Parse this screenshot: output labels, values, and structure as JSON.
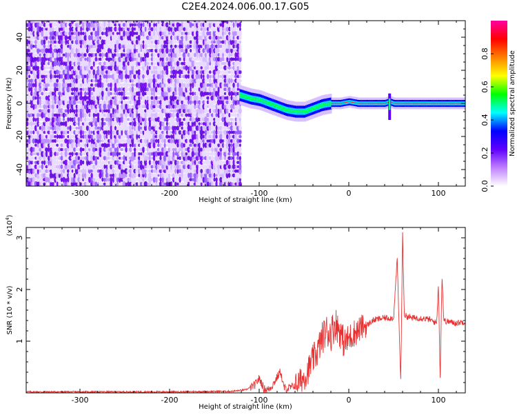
{
  "title": "C2E4.2024.006.00.17.G05",
  "chart_data": [
    {
      "type": "heatmap",
      "name": "spectrogram",
      "xlabel": "Height of straight line (km)",
      "ylabel": "Frequency (Hz)",
      "xlim": [
        -360,
        130
      ],
      "ylim": [
        -50,
        50
      ],
      "xticks": [
        -300,
        -200,
        -100,
        0,
        100
      ],
      "yticks": [
        -40,
        -20,
        0,
        20,
        40
      ],
      "noise_region_x": [
        -360,
        -122
      ],
      "signal_trace": {
        "x": [
          -122,
          -110,
          -100,
          -90,
          -80,
          -70,
          -60,
          -50,
          -40,
          -30,
          -20,
          -10,
          0,
          10,
          20,
          30,
          40,
          45,
          50,
          60,
          80,
          100,
          120,
          130
        ],
        "y": [
          5,
          3,
          2,
          0,
          -2,
          -4,
          -5,
          -5,
          -3,
          -1,
          0,
          0,
          1,
          0,
          0,
          0,
          0,
          1,
          0,
          0,
          0,
          0,
          0,
          0
        ]
      },
      "colorbar": {
        "label": "Normalized spectral amplitude",
        "ticks": [
          0.0,
          0.2,
          0.4,
          0.6,
          0.8
        ],
        "range": [
          0,
          1
        ],
        "colors": [
          "#ffffff",
          "#c080ff",
          "#6000ff",
          "#0000ff",
          "#00ffff",
          "#00ff00",
          "#ffff00",
          "#ff8000",
          "#ff0000",
          "#ff00a0"
        ]
      }
    },
    {
      "type": "line",
      "name": "snr",
      "xlabel": "Height of straight line (km)",
      "ylabel": "SNR (10 * v/v)",
      "multiplier": "(x10",
      "multiplier_exp": "4",
      "multiplier_close": ")",
      "xlim": [
        -360,
        130
      ],
      "ylim": [
        0,
        3.2
      ],
      "xticks": [
        -300,
        -200,
        -100,
        0,
        100
      ],
      "yticks": [
        1,
        2,
        3
      ],
      "color": "#e83030",
      "x": [
        -360,
        -200,
        -130,
        -115,
        -105,
        -100,
        -97,
        -95,
        -90,
        -85,
        -80,
        -76,
        -74,
        -72,
        -70,
        -65,
        -60,
        -55,
        -50,
        -45,
        -40,
        -35,
        -30,
        -25,
        -20,
        -15,
        -10,
        -5,
        0,
        5,
        10,
        15,
        20,
        25,
        30,
        40,
        50,
        54,
        56,
        58,
        60,
        62,
        70,
        80,
        90,
        98,
        100,
        102,
        104,
        106,
        110,
        120,
        130
      ],
      "y": [
        0.02,
        0.02,
        0.03,
        0.06,
        0.15,
        0.28,
        0.18,
        0.08,
        0.06,
        0.15,
        0.3,
        0.42,
        0.2,
        0.1,
        0.08,
        0.1,
        0.15,
        0.22,
        0.3,
        0.45,
        0.65,
        0.8,
        1.05,
        1.2,
        1.15,
        1.35,
        1.2,
        0.95,
        1.05,
        1.15,
        1.2,
        1.28,
        1.3,
        1.38,
        1.42,
        1.45,
        1.45,
        2.6,
        1.35,
        0.2,
        3.05,
        1.5,
        1.45,
        1.45,
        1.42,
        1.35,
        2.1,
        0.3,
        2.3,
        1.4,
        1.38,
        1.35,
        1.38
      ]
    }
  ]
}
